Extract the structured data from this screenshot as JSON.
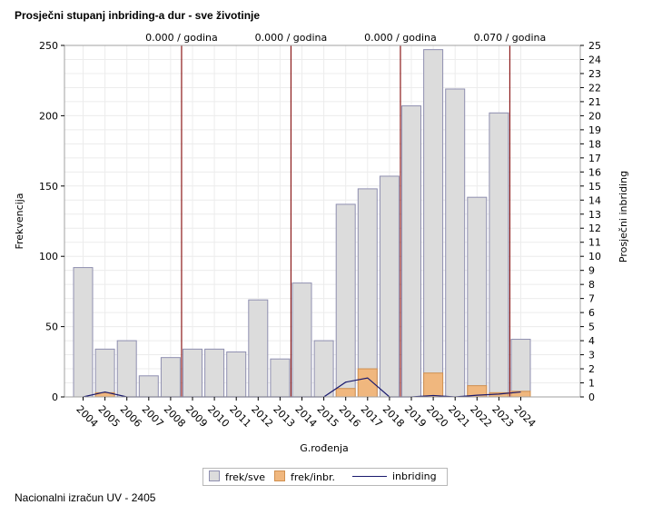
{
  "title": "Prosječni stupanj inbriding-a dur - sve životinje",
  "footnote": "Nacionalni izračun UV - 2405",
  "chart_data": {
    "type": "bar",
    "title": "Prosječni stupanj inbriding-a dur - sve životinje",
    "xlabel": "G.rođenja",
    "ylabel": "Frekvencija",
    "y2label": "Prosječni inbriding",
    "ylim": [
      0,
      250
    ],
    "y2lim": [
      0,
      25
    ],
    "yticks": [
      0,
      50,
      100,
      150,
      200,
      250
    ],
    "y2ticks": [
      0,
      1,
      2,
      3,
      4,
      5,
      6,
      7,
      8,
      9,
      10,
      11,
      12,
      13,
      14,
      15,
      16,
      17,
      18,
      19,
      20,
      21,
      22,
      23,
      24,
      25
    ],
    "categories": [
      "2004",
      "2005",
      "2006",
      "2007",
      "2008",
      "2009",
      "2010",
      "2011",
      "2012",
      "2013",
      "2014",
      "2015",
      "2016",
      "2017",
      "2018",
      "2019",
      "2020",
      "2021",
      "2022",
      "2023",
      "2024"
    ],
    "series": [
      {
        "name": "frek/sve",
        "type": "bar",
        "color": "#dcdcdc",
        "edge": "#8f8fb0",
        "values": [
          92,
          34,
          40,
          15,
          28,
          34,
          34,
          32,
          69,
          27,
          81,
          40,
          137,
          148,
          157,
          207,
          247,
          219,
          142,
          202,
          41
        ]
      },
      {
        "name": "frek/inbr.",
        "type": "bar",
        "color": "#f0b77e",
        "edge": "#d09050",
        "values": [
          0,
          3,
          0,
          0,
          0,
          0,
          0,
          0,
          0,
          0,
          0,
          0,
          6,
          20,
          0,
          0,
          17,
          0,
          8,
          3,
          4
        ]
      },
      {
        "name": "inbriding",
        "type": "line",
        "color": "#1a1a6e",
        "values": [
          0,
          0.35,
          0,
          0,
          0,
          0,
          0,
          0,
          0,
          0,
          0,
          0,
          1.05,
          1.35,
          0,
          0,
          0.1,
          0,
          0.12,
          0.2,
          0.35
        ]
      }
    ],
    "reference_lines": [
      {
        "after_category": "2008",
        "label": "0.000 / godina"
      },
      {
        "after_category": "2013",
        "label": "0.000 / godina"
      },
      {
        "after_category": "2018",
        "label": "0.000 / godina"
      },
      {
        "after_category": "2023",
        "label": "0.070 / godina"
      }
    ],
    "grid": true,
    "legend_position": "bottom"
  }
}
